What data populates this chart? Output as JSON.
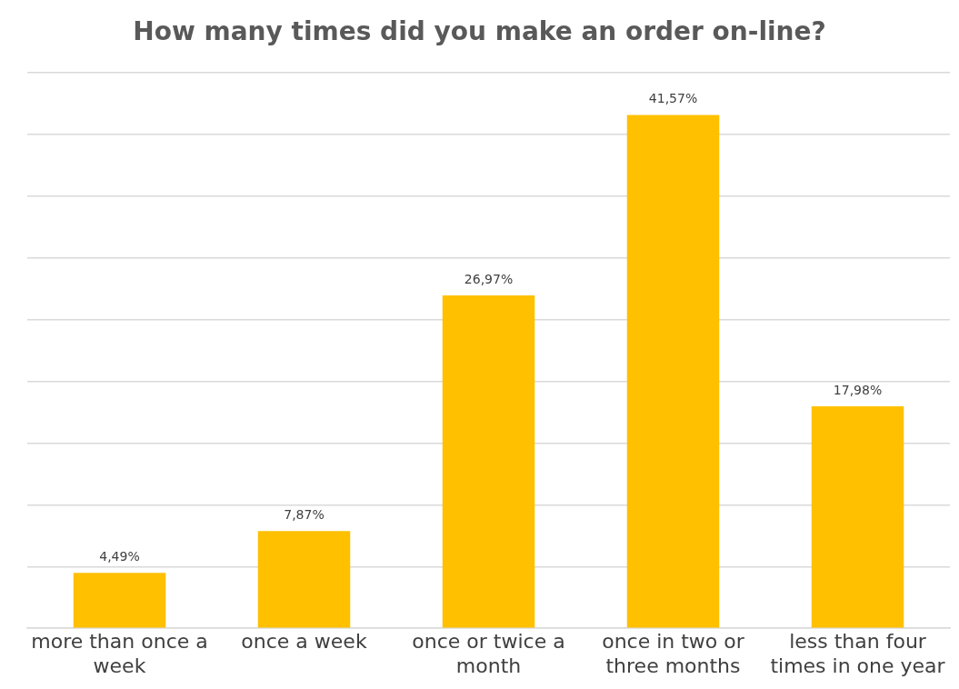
{
  "chart_data": {
    "type": "bar",
    "title": "How many times did you make an order on-line?",
    "categories": [
      "more than once a week",
      "once a week",
      "once or twice a month",
      "once in two or three months",
      "less than four times in one year"
    ],
    "values": [
      4.49,
      7.87,
      26.97,
      41.57,
      17.98
    ],
    "value_labels": [
      "4,49%",
      "7,87%",
      "26,97%",
      "41,57%",
      "17,98%"
    ],
    "color": "#ffc000",
    "ylim": [
      0,
      45
    ],
    "yticks": [
      {
        "value": 0,
        "label": null
      },
      {
        "value": 5,
        "label": null
      },
      {
        "value": 10,
        "label": null
      },
      {
        "value": 15,
        "label": null
      },
      {
        "value": 20,
        "label": null
      },
      {
        "value": 25,
        "label": null
      },
      {
        "value": 30,
        "label": null
      },
      {
        "value": 35,
        "label": null
      },
      {
        "value": 40,
        "label": null
      },
      {
        "value": 45,
        "label": null
      }
    ],
    "grid": "y",
    "legend": false,
    "tick_labels": "x"
  }
}
